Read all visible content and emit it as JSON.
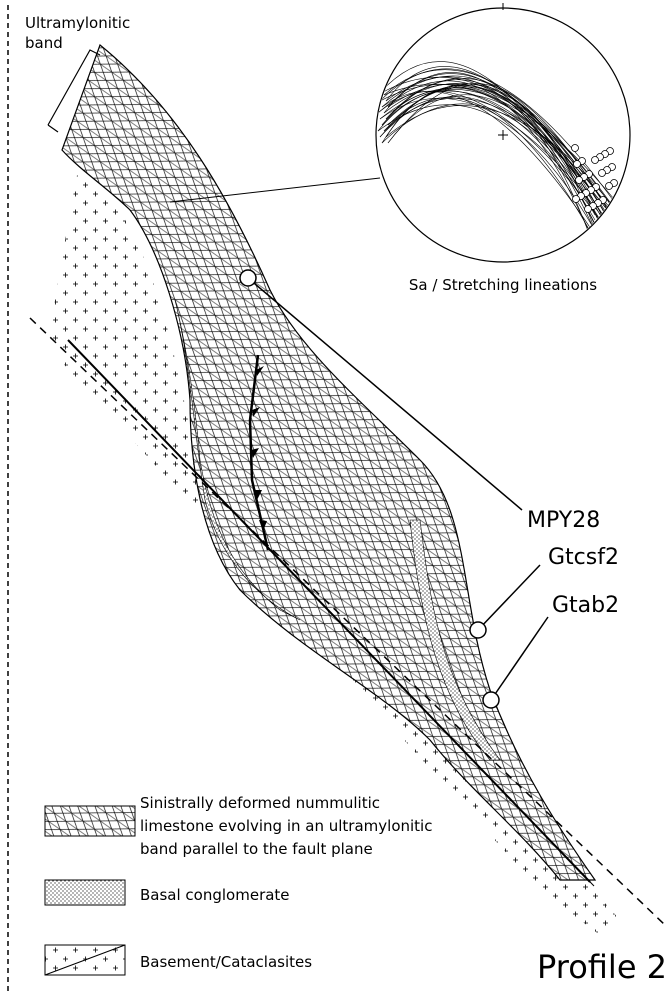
{
  "labels": {
    "ultramylonitic_band": [
      "Ultramylonitic",
      "band"
    ],
    "stereonet_caption": "Sa / Stretching lineations",
    "samples": [
      "MPY28",
      "Gtcsf2",
      "Gtab2"
    ]
  },
  "legend": [
    {
      "lines": [
        "Sinistrally deformed nummulitic",
        "limestone evolving in an ultramylonitic",
        "band parallel to the fault plane"
      ]
    },
    {
      "lines": [
        "Basal conglomerate"
      ]
    },
    {
      "lines": [
        "Basement/Cataclasites"
      ]
    }
  ],
  "title": "Profile 2"
}
